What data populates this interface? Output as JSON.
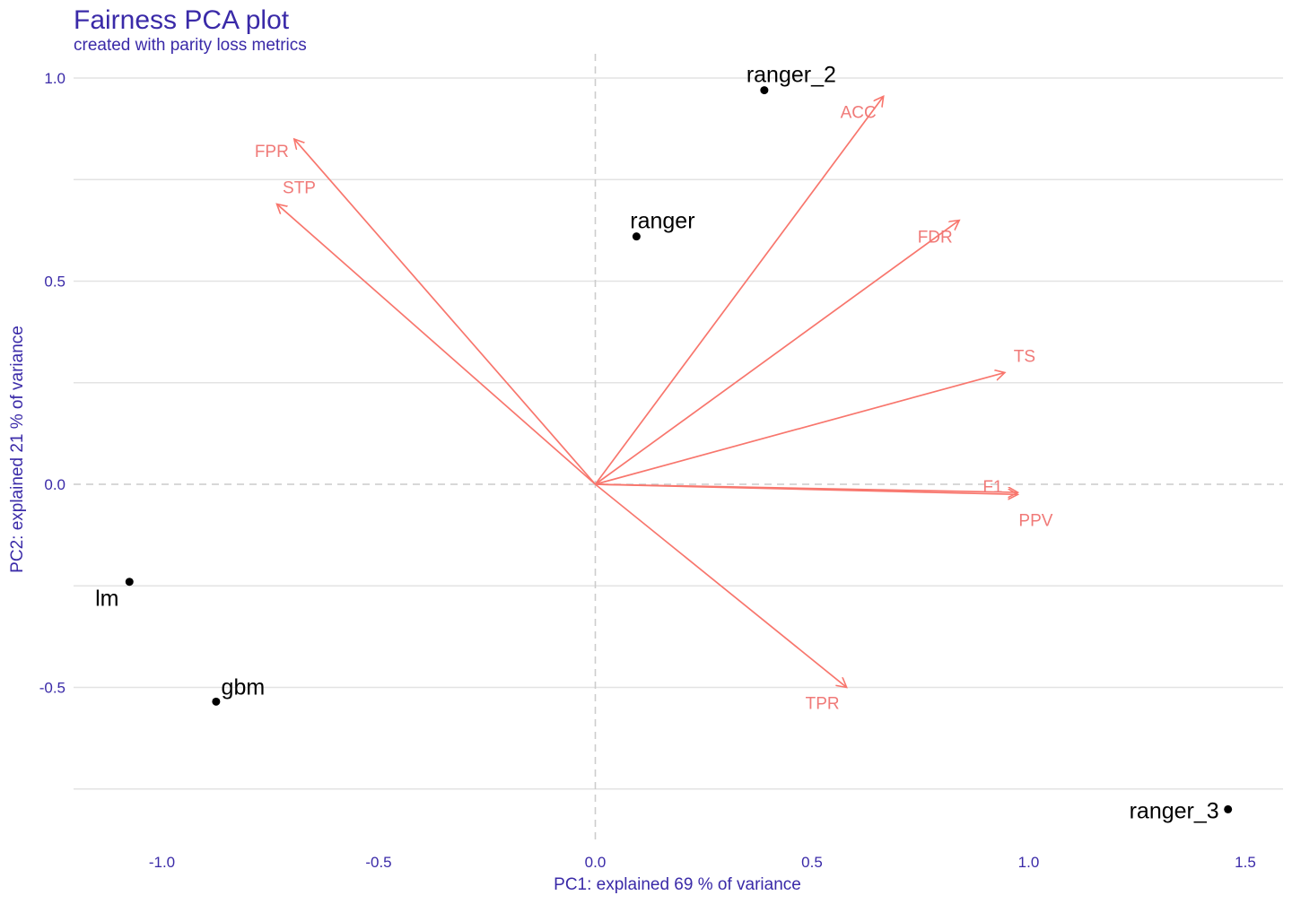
{
  "chart_data": {
    "type": "scatter",
    "title": "Fairness PCA plot",
    "subtitle": "created with parity loss metrics",
    "xlabel": "PC1: explained 69 % of variance",
    "ylabel": "PC2: explained 21 % of variance",
    "xlim": [
      -1.2,
      1.55
    ],
    "ylim": [
      -0.88,
      1.06
    ],
    "x_ticks": [
      -1.0,
      -0.5,
      0.0,
      0.5,
      1.0,
      1.5
    ],
    "x_tick_labels": [
      "-1.0",
      "-0.5",
      "0.0",
      "0.5",
      "1.0",
      "1.5"
    ],
    "y_ticks": [
      -0.5,
      0.0,
      0.5,
      1.0
    ],
    "y_tick_labels": [
      "-0.5",
      "0.0",
      "0.5",
      "1.0"
    ],
    "grid": true,
    "points": [
      {
        "label": "ranger_2",
        "x": 0.39,
        "y": 0.97
      },
      {
        "label": "ranger",
        "x": 0.095,
        "y": 0.61
      },
      {
        "label": "lm",
        "x": -1.075,
        "y": -0.24
      },
      {
        "label": "gbm",
        "x": -0.875,
        "y": -0.535
      },
      {
        "label": "ranger_3",
        "x": 1.46,
        "y": -0.8
      }
    ],
    "vectors": [
      {
        "label": "ACC",
        "x": 0.665,
        "y": 0.955
      },
      {
        "label": "FPR",
        "x": -0.695,
        "y": 0.85
      },
      {
        "label": "STP",
        "x": -0.735,
        "y": 0.69
      },
      {
        "label": "FDR",
        "x": 0.84,
        "y": 0.65
      },
      {
        "label": "TS",
        "x": 0.945,
        "y": 0.275
      },
      {
        "label": "F1",
        "x": 0.975,
        "y": -0.02
      },
      {
        "label": "PPV",
        "x": 0.975,
        "y": -0.025
      },
      {
        "label": "TPR",
        "x": 0.58,
        "y": -0.5
      }
    ],
    "colors": {
      "vector": "#f8766d",
      "point": "#000000",
      "text": "#3a2aa8"
    }
  }
}
